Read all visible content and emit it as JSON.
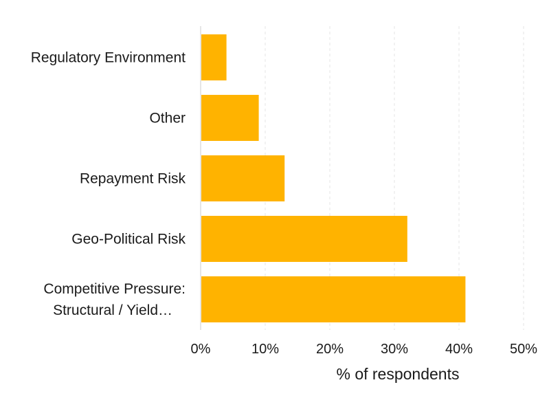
{
  "chart_data": {
    "type": "bar",
    "orientation": "horizontal",
    "categories": [
      [
        "Regulatory Environment"
      ],
      [
        "Other"
      ],
      [
        "Repayment Risk"
      ],
      [
        "Geo-Political Risk"
      ],
      [
        "Competitive Pressure:",
        "Structural / Yield…"
      ]
    ],
    "values": [
      4,
      9,
      13,
      32,
      41
    ],
    "xlabel": "% of respondents",
    "ylabel": "",
    "xlim": [
      0,
      50
    ],
    "xticks": [
      0,
      10,
      20,
      30,
      40,
      50
    ],
    "xtick_labels": [
      "0%",
      "10%",
      "20%",
      "30%",
      "40%",
      "50%"
    ],
    "grid": "vertical dashed",
    "colors": {
      "bar": "#FFB300",
      "grid": "#e6e6e6",
      "axis": "#cccccc",
      "text": "#1a1a1a"
    }
  }
}
